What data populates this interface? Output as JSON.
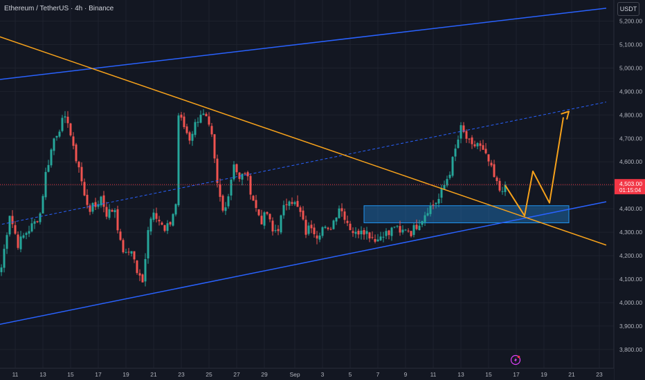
{
  "header": {
    "title": "Ethereum / TetherUS · 4h · Binance",
    "currency": "USDT"
  },
  "price_tag": {
    "price": "4,503.00",
    "countdown": "01:15:04",
    "color": "#f23645"
  },
  "lightning_icon": "lightning-icon",
  "colors": {
    "background": "#131722",
    "up": "#26a69a",
    "down": "#ef5350",
    "channel": "#2962ff",
    "trendline": "#f7a21b",
    "zone": "#2196f3"
  },
  "chart_data": {
    "type": "candlestick",
    "title": "Ethereum / TetherUS · 4h · Binance",
    "ylim": [
      3720,
      5290
    ],
    "yticks": [
      "5,200.00",
      "5,100.00",
      "5,000.00",
      "4,900.00",
      "4,800.00",
      "4,700.00",
      "4,600.00",
      "4,500.00",
      "4,400.00",
      "4,300.00",
      "4,200.00",
      "4,100.00",
      "4,000.00",
      "3,900.00",
      "3,800.00"
    ],
    "ytick_values": [
      5200,
      5100,
      5000,
      4900,
      4800,
      4700,
      4600,
      4500,
      4400,
      4300,
      4200,
      4100,
      4000,
      3900,
      3800
    ],
    "xticks": [
      "11",
      "13",
      "15",
      "17",
      "19",
      "21",
      "23",
      "25",
      "27",
      "29",
      "Sep",
      "3",
      "5",
      "7",
      "9",
      "11",
      "13",
      "15",
      "17",
      "19",
      "21",
      "23"
    ],
    "xtick_index": [
      5,
      15,
      25,
      35,
      45,
      55,
      65,
      75,
      85,
      95,
      106,
      116,
      126,
      136,
      146,
      156,
      166,
      176,
      186,
      196,
      206,
      216
    ],
    "last_price": 4503,
    "close_path": [
      [
        0,
        4150
      ],
      [
        3,
        4380
      ],
      [
        6,
        4250
      ],
      [
        9,
        4300
      ],
      [
        12,
        4340
      ],
      [
        14,
        4380
      ],
      [
        16,
        4550
      ],
      [
        19,
        4700
      ],
      [
        22,
        4770
      ],
      [
        24,
        4780
      ],
      [
        26,
        4650
      ],
      [
        28,
        4580
      ],
      [
        30,
        4450
      ],
      [
        32,
        4400
      ],
      [
        34,
        4410
      ],
      [
        36,
        4450
      ],
      [
        38,
        4380
      ],
      [
        41,
        4400
      ],
      [
        43,
        4250
      ],
      [
        45,
        4200
      ],
      [
        47,
        4230
      ],
      [
        49,
        4130
      ],
      [
        51,
        4080
      ],
      [
        53,
        4320
      ],
      [
        55,
        4400
      ],
      [
        57,
        4350
      ],
      [
        59,
        4300
      ],
      [
        61,
        4340
      ],
      [
        63,
        4420
      ],
      [
        64,
        4800
      ],
      [
        66,
        4750
      ],
      [
        68,
        4700
      ],
      [
        70,
        4760
      ],
      [
        72,
        4810
      ],
      [
        74,
        4780
      ],
      [
        76,
        4700
      ],
      [
        78,
        4500
      ],
      [
        80,
        4390
      ],
      [
        82,
        4460
      ],
      [
        84,
        4600
      ],
      [
        86,
        4520
      ],
      [
        88,
        4560
      ],
      [
        90,
        4480
      ],
      [
        92,
        4400
      ],
      [
        94,
        4350
      ],
      [
        96,
        4380
      ],
      [
        98,
        4300
      ],
      [
        100,
        4320
      ],
      [
        102,
        4400
      ],
      [
        104,
        4450
      ],
      [
        106,
        4420
      ],
      [
        108,
        4380
      ],
      [
        110,
        4300
      ],
      [
        112,
        4330
      ],
      [
        114,
        4290
      ],
      [
        116,
        4320
      ],
      [
        118,
        4300
      ],
      [
        120,
        4350
      ],
      [
        122,
        4410
      ],
      [
        124,
        4370
      ],
      [
        126,
        4320
      ],
      [
        128,
        4290
      ],
      [
        130,
        4320
      ],
      [
        132,
        4300
      ],
      [
        134,
        4280
      ],
      [
        136,
        4270
      ],
      [
        138,
        4300
      ],
      [
        140,
        4290
      ],
      [
        142,
        4330
      ],
      [
        144,
        4290
      ],
      [
        146,
        4320
      ],
      [
        148,
        4300
      ],
      [
        150,
        4330
      ],
      [
        152,
        4360
      ],
      [
        154,
        4400
      ],
      [
        156,
        4420
      ],
      [
        158,
        4440
      ],
      [
        160,
        4500
      ],
      [
        162,
        4560
      ],
      [
        164,
        4650
      ],
      [
        166,
        4740
      ],
      [
        168,
        4700
      ],
      [
        170,
        4660
      ],
      [
        172,
        4680
      ],
      [
        174,
        4640
      ],
      [
        176,
        4600
      ],
      [
        178,
        4530
      ],
      [
        180,
        4480
      ],
      [
        182,
        4503
      ]
    ],
    "channel_upper": [
      [
        -1.5,
        4950
      ],
      [
        218.5,
        5255
      ]
    ],
    "channel_lower": [
      [
        -1.5,
        3905
      ],
      [
        218.5,
        4430
      ]
    ],
    "channel_mid": [
      [
        -1.5,
        4330
      ],
      [
        218.5,
        4855
      ]
    ],
    "descending_trendline": [
      [
        -1.5,
        5137
      ],
      [
        218.5,
        4245
      ]
    ],
    "resistance_line": {
      "price": 4503
    },
    "support_zone": {
      "from_index": 131,
      "to_index": 205,
      "low": 4340,
      "high": 4413
    },
    "projection_path": [
      [
        182,
        4500
      ],
      [
        189,
        4370
      ],
      [
        192,
        4560
      ],
      [
        198,
        4425
      ],
      [
        203,
        4790
      ]
    ],
    "projection_arrow": [
      [
        203,
        4790
      ],
      [
        205,
        4815
      ]
    ]
  }
}
